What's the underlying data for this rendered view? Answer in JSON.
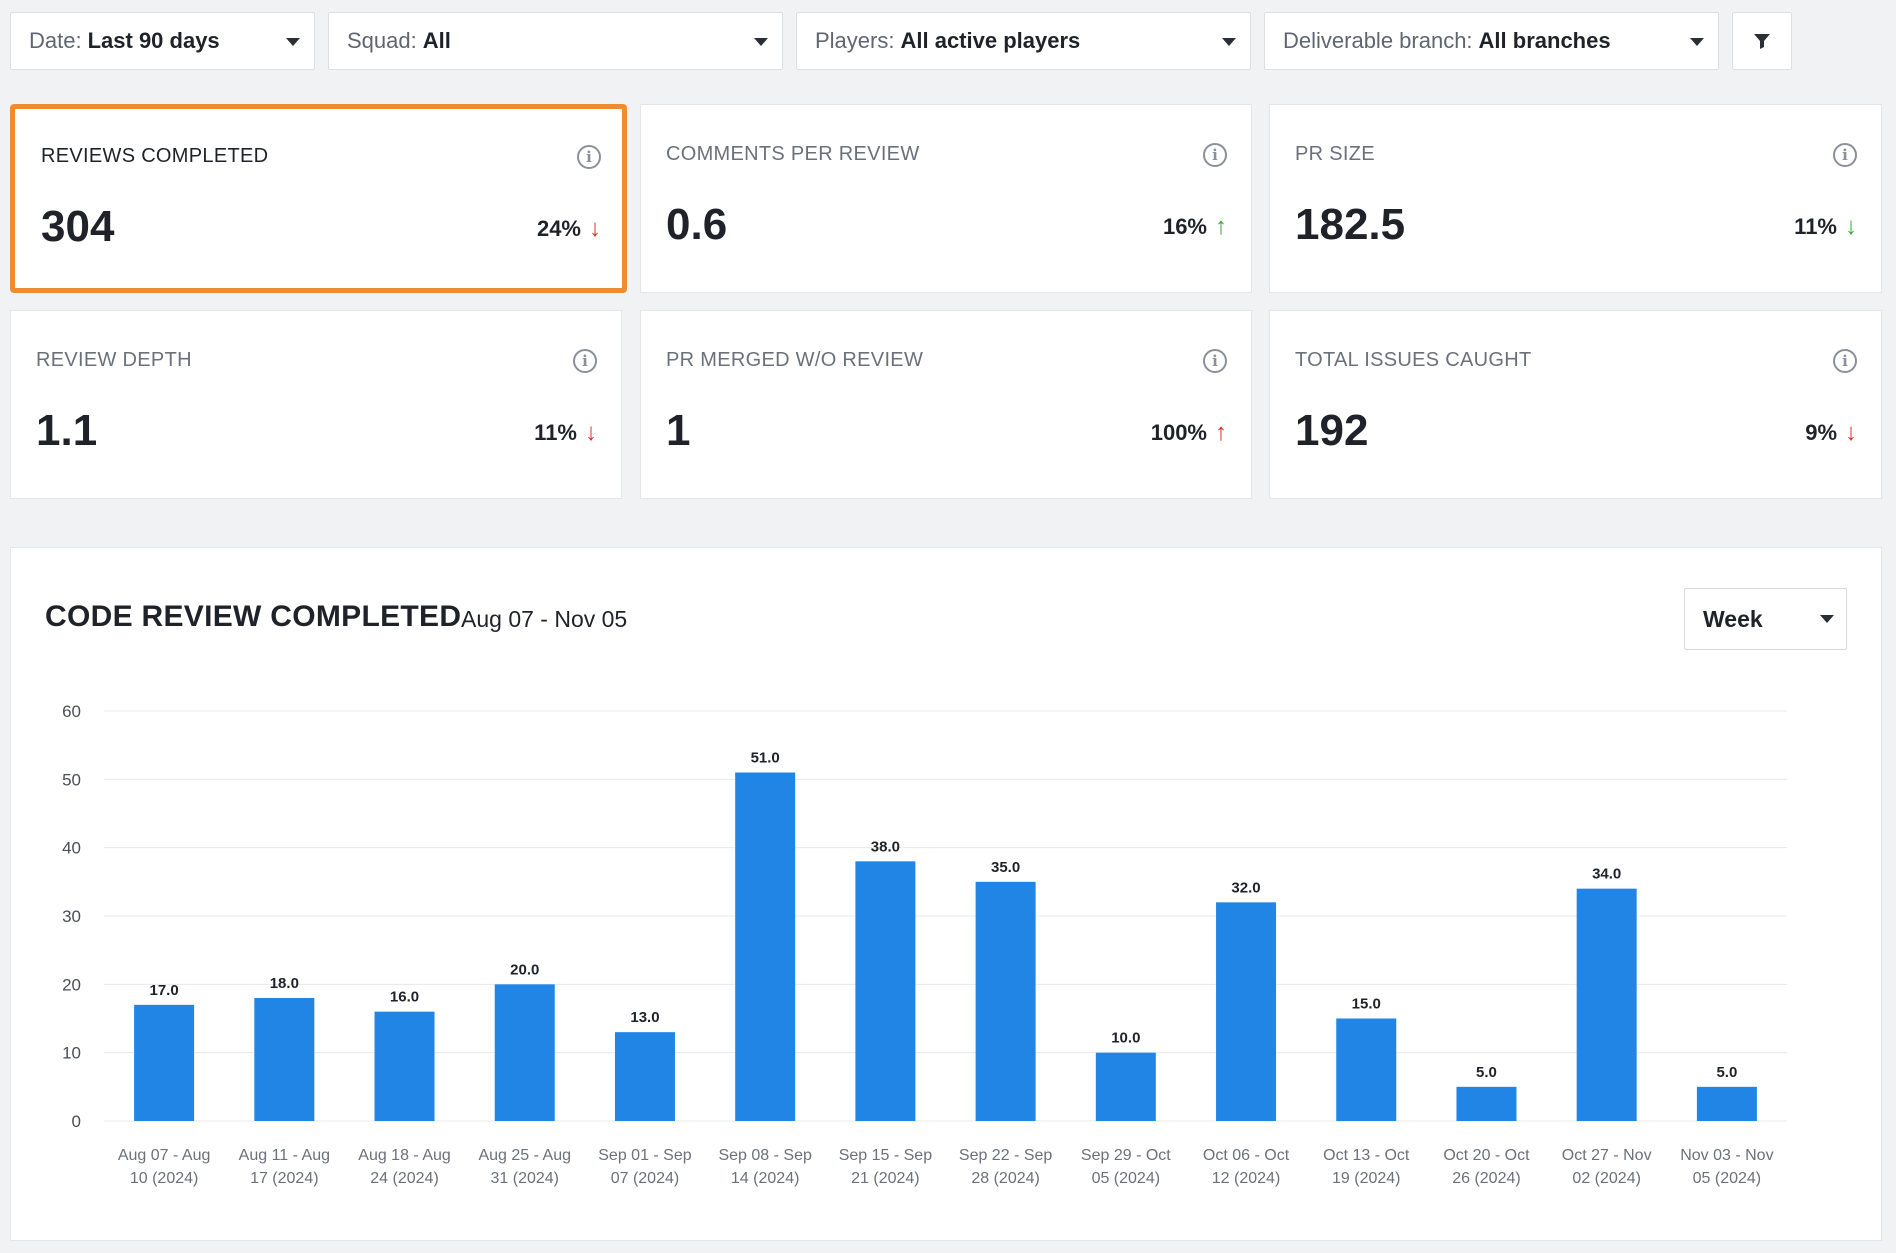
{
  "filters": [
    {
      "label": "Date:",
      "value": "Last 90 days"
    },
    {
      "label": "Squad:",
      "value": "All"
    },
    {
      "label": "Players:",
      "value": "All active players"
    },
    {
      "label": "Deliverable branch:",
      "value": "All branches"
    }
  ],
  "filter_button_icon": "funnel-icon",
  "metrics": [
    {
      "title": "REVIEWS COMPLETED",
      "value": "304",
      "delta": "24%",
      "direction": "down",
      "color": "#e0302b",
      "selected": true
    },
    {
      "title": "COMMENTS PER REVIEW",
      "value": "0.6",
      "delta": "16%",
      "direction": "up",
      "color": "#3ea63b",
      "selected": false
    },
    {
      "title": "PR SIZE",
      "value": "182.5",
      "delta": "11%",
      "direction": "down",
      "color": "#3ea63b",
      "selected": false
    },
    {
      "title": "REVIEW DEPTH",
      "value": "1.1",
      "delta": "11%",
      "direction": "down",
      "color": "#e0302b",
      "selected": false
    },
    {
      "title": "PR MERGED W/O REVIEW",
      "value": "1",
      "delta": "100%",
      "direction": "up",
      "color": "#e0302b",
      "selected": false
    },
    {
      "title": "TOTAL ISSUES CAUGHT",
      "value": "192",
      "delta": "9%",
      "direction": "down",
      "color": "#e0302b",
      "selected": false
    }
  ],
  "chart_panel": {
    "title": "CODE REVIEW COMPLETED",
    "range": "Aug 07 - Nov 05",
    "granularity": "Week"
  },
  "chart_data": {
    "type": "bar",
    "categories": [
      [
        "Aug 07 - Aug",
        "10 (2024)"
      ],
      [
        "Aug 11 - Aug",
        "17 (2024)"
      ],
      [
        "Aug 18 - Aug",
        "24 (2024)"
      ],
      [
        "Aug 25 - Aug",
        "31 (2024)"
      ],
      [
        "Sep 01 - Sep",
        "07 (2024)"
      ],
      [
        "Sep 08 - Sep",
        "14 (2024)"
      ],
      [
        "Sep 15 - Sep",
        "21 (2024)"
      ],
      [
        "Sep 22 - Sep",
        "28 (2024)"
      ],
      [
        "Sep 29 - Oct",
        "05 (2024)"
      ],
      [
        "Oct 06 - Oct",
        "12 (2024)"
      ],
      [
        "Oct 13 - Oct",
        "19 (2024)"
      ],
      [
        "Oct 20 - Oct",
        "26 (2024)"
      ],
      [
        "Oct 27 - Nov",
        "02 (2024)"
      ],
      [
        "Nov 03 - Nov",
        "05 (2024)"
      ]
    ],
    "values": [
      17,
      18,
      16,
      20,
      13,
      51,
      38,
      35,
      10,
      32,
      15,
      5,
      34,
      5
    ],
    "data_labels": [
      "17.0",
      "18.0",
      "16.0",
      "20.0",
      "13.0",
      "51.0",
      "38.0",
      "35.0",
      "10.0",
      "32.0",
      "15.0",
      "5.0",
      "34.0",
      "5.0"
    ],
    "yticks": [
      0,
      10,
      20,
      30,
      40,
      50,
      60
    ],
    "ylim": [
      0,
      60
    ],
    "bar_color": "#2185e6",
    "grid": true
  }
}
